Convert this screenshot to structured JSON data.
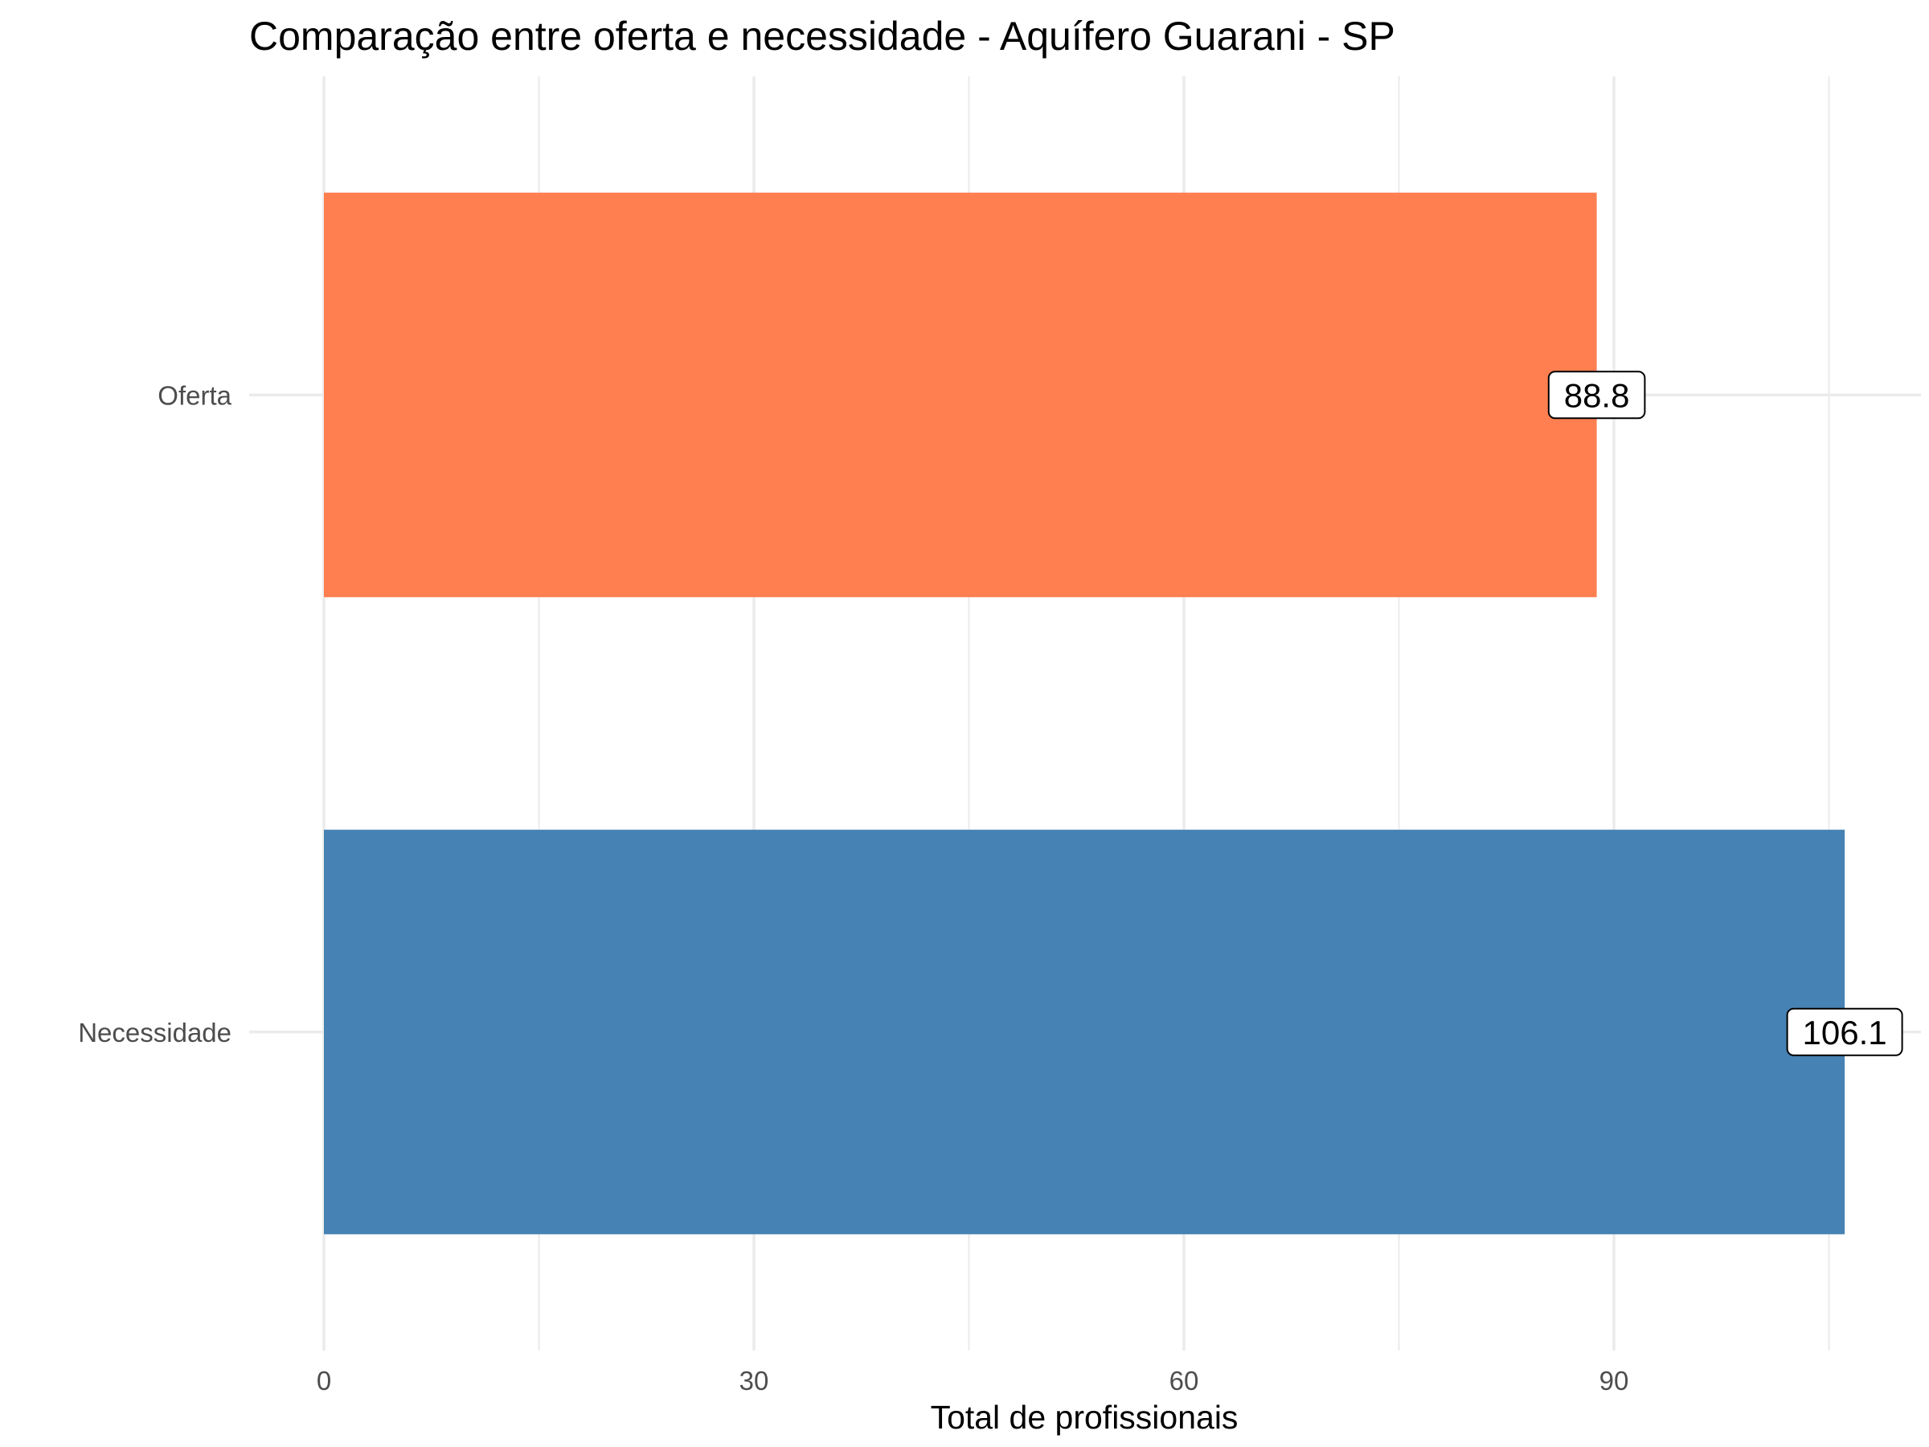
{
  "chart_data": {
    "type": "bar",
    "orientation": "horizontal",
    "title": "Comparação entre oferta e necessidade - Aquífero Guarani - SP",
    "xlabel": "Total de profissionais",
    "ylabel": "",
    "categories": [
      "Oferta",
      "Necessidade"
    ],
    "values": [
      88.8,
      106.1
    ],
    "data_labels": [
      "88.8",
      "106.1"
    ],
    "colors": [
      "#FF7F50",
      "#4682B4"
    ],
    "xlim": [
      0,
      111.4
    ],
    "x_ticks": [
      0,
      30,
      60,
      90
    ],
    "x_tick_labels": [
      "0",
      "30",
      "60",
      "90"
    ],
    "grid": true,
    "legend": "none"
  }
}
